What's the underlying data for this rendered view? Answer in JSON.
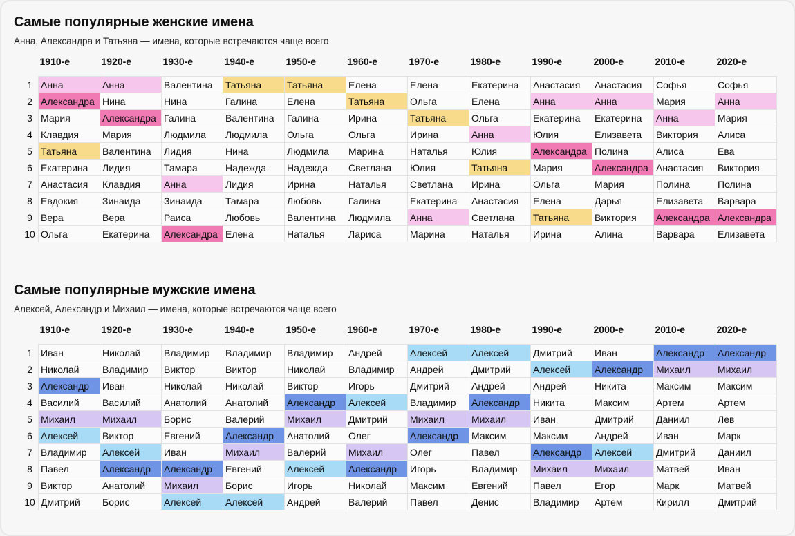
{
  "decades": [
    "1910-е",
    "1920-е",
    "1930-е",
    "1940-е",
    "1950-е",
    "1960-е",
    "1970-е",
    "1980-е",
    "1990-е",
    "2000-е",
    "2010-е",
    "2020-е"
  ],
  "colors": {
    "Анна": "#f7c6ec",
    "Александра": "#f17ab4",
    "Татьяна": "#f8dc8c",
    "Алексей": "#a8dcf6",
    "Александр": "#6f94e5",
    "Михаил": "#d6c6f4"
  },
  "female": {
    "title": "Самые популярные женские имена",
    "subtitle": "Анна, Александра и Татьяна — имена, которые встречаются чаще всего",
    "rows": [
      [
        "Анна",
        "Анна",
        "Валентина",
        "Татьяна",
        "Татьяна",
        "Елена",
        "Елена",
        "Екатерина",
        "Анастасия",
        "Анастасия",
        "Софья",
        "Софья"
      ],
      [
        "Александра",
        "Нина",
        "Нина",
        "Галина",
        "Елена",
        "Татьяна",
        "Ольга",
        "Елена",
        "Анна",
        "Анна",
        "Мария",
        "Анна"
      ],
      [
        "Мария",
        "Александра",
        "Галина",
        "Валентина",
        "Галина",
        "Ирина",
        "Татьяна",
        "Ольга",
        "Екатерина",
        "Екатерина",
        "Анна",
        "Мария"
      ],
      [
        "Клавдия",
        "Мария",
        "Людмила",
        "Людмила",
        "Ольга",
        "Ольга",
        "Ирина",
        "Анна",
        "Юлия",
        "Елизавета",
        "Виктория",
        "Алиса"
      ],
      [
        "Татьяна",
        "Валентина",
        "Лидия",
        "Нина",
        "Людмила",
        "Марина",
        "Наталья",
        "Юлия",
        "Александра",
        "Полина",
        "Алиса",
        "Ева"
      ],
      [
        "Екатерина",
        "Лидия",
        "Тамара",
        "Надежда",
        "Надежда",
        "Светлана",
        "Юлия",
        "Татьяна",
        "Мария",
        "Александра",
        "Анастасия",
        "Виктория"
      ],
      [
        "Анастасия",
        "Клавдия",
        "Анна",
        "Лидия",
        "Ирина",
        "Наталья",
        "Светлана",
        "Ирина",
        "Ольга",
        "Мария",
        "Полина",
        "Полина"
      ],
      [
        "Евдокия",
        "Зинаида",
        "Зинаида",
        "Тамара",
        "Любовь",
        "Галина",
        "Екатерина",
        "Анастасия",
        "Елена",
        "Дарья",
        "Елизавета",
        "Варвара"
      ],
      [
        "Вера",
        "Вера",
        "Раиса",
        "Любовь",
        "Валентина",
        "Людмила",
        "Анна",
        "Светлана",
        "Татьяна",
        "Виктория",
        "Александра",
        "Александра"
      ],
      [
        "Ольга",
        "Екатерина",
        "Александра",
        "Елена",
        "Наталья",
        "Лариса",
        "Марина",
        "Наталья",
        "Ирина",
        "Алина",
        "Варвара",
        "Елизавета"
      ]
    ]
  },
  "male": {
    "title": "Самые популярные мужские имена",
    "subtitle": "Алексей, Александр и Михаил — имена, которые встречаются чаще всего",
    "rows": [
      [
        "Иван",
        "Николай",
        "Владимир",
        "Владимир",
        "Владимир",
        "Андрей",
        "Алексей",
        "Алексей",
        "Дмитрий",
        "Иван",
        "Александр",
        "Александр"
      ],
      [
        "Николай",
        "Владимир",
        "Виктор",
        "Виктор",
        "Николай",
        "Владимир",
        "Андрей",
        "Дмитрий",
        "Алексей",
        "Александр",
        "Михаил",
        "Михаил"
      ],
      [
        "Александр",
        "Иван",
        "Николай",
        "Николай",
        "Виктор",
        "Игорь",
        "Дмитрий",
        "Андрей",
        "Андрей",
        "Никита",
        "Максим",
        "Максим"
      ],
      [
        "Василий",
        "Василий",
        "Анатолий",
        "Анатолий",
        "Александр",
        "Алексей",
        "Владимир",
        "Александр",
        "Никита",
        "Максим",
        "Артем",
        "Артем"
      ],
      [
        "Михаил",
        "Михаил",
        "Борис",
        "Валерий",
        "Михаил",
        "Дмитрий",
        "Михаил",
        "Михаил",
        "Иван",
        "Дмитрий",
        "Даниил",
        "Лев"
      ],
      [
        "Алексей",
        "Виктор",
        "Евгений",
        "Александр",
        "Анатолий",
        "Олег",
        "Александр",
        "Максим",
        "Максим",
        "Андрей",
        "Иван",
        "Марк"
      ],
      [
        "Владимир",
        "Алексей",
        "Иван",
        "Михаил",
        "Валерий",
        "Михаил",
        "Олег",
        "Павел",
        "Александр",
        "Алексей",
        "Дмитрий",
        "Даниил"
      ],
      [
        "Павел",
        "Александр",
        "Александр",
        "Евгений",
        "Алексей",
        "Александр",
        "Игорь",
        "Владимир",
        "Михаил",
        "Михаил",
        "Матвей",
        "Иван"
      ],
      [
        "Виктор",
        "Анатолий",
        "Михаил",
        "Борис",
        "Игорь",
        "Николай",
        "Максим",
        "Евгений",
        "Павел",
        "Егор",
        "Марк",
        "Матвей"
      ],
      [
        "Дмитрий",
        "Борис",
        "Алексей",
        "Алексей",
        "Андрей",
        "Валерий",
        "Павел",
        "Денис",
        "Владимир",
        "Артем",
        "Кирилл",
        "Дмитрий"
      ]
    ]
  }
}
